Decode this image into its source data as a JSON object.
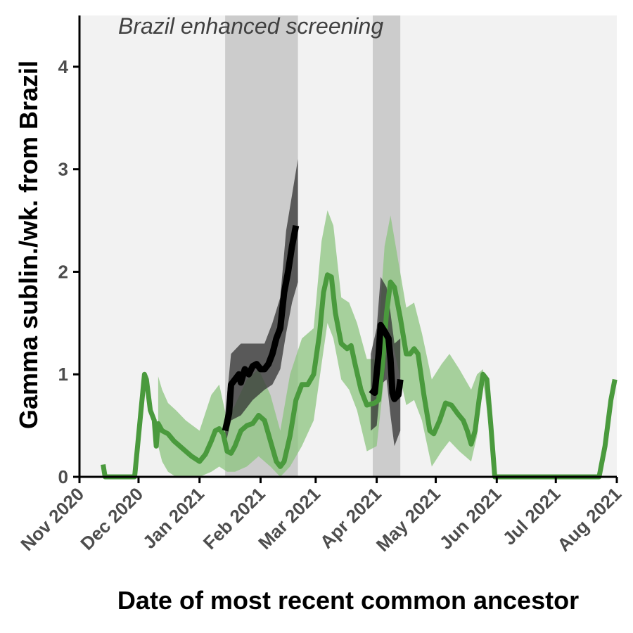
{
  "chart_data": {
    "type": "line",
    "title": "",
    "xlabel": "Date of most recent common ancestor",
    "ylabel": "Gamma sublin./wk. from Brazil",
    "xlim": [
      "2020-11-01",
      "2021-08-01"
    ],
    "ylim": [
      0,
      4.5
    ],
    "x_tick_labels": [
      "Nov 2020",
      "Dec 2020",
      "Jan 2021",
      "Feb 2021",
      "Mar 2021",
      "Apr 2021",
      "May 2021",
      "Jun 2021",
      "Jul 2021",
      "Aug 2021"
    ],
    "x_tick_dates": [
      "2020-11-01",
      "2020-12-01",
      "2021-01-01",
      "2021-02-01",
      "2021-03-01",
      "2021-04-01",
      "2021-05-01",
      "2021-06-01",
      "2021-07-01",
      "2021-08-01"
    ],
    "y_ticks": [
      0,
      1,
      2,
      3,
      4
    ],
    "annotation": "Brazil enhanced screening",
    "shaded_periods": [
      {
        "start": "2021-01-14",
        "end": "2021-02-20"
      },
      {
        "start": "2021-03-30",
        "end": "2021-04-13"
      }
    ],
    "colors": {
      "panel_background": "#f2f2f2",
      "shaded_period": "#cccccc",
      "green_line": "#4a9a3d",
      "green_band": "#8cc47f",
      "black_line": "#000000",
      "black_band": "#333333"
    },
    "series": [
      {
        "color": "#4a9a3d",
        "points": [
          [
            "2020-11-13",
            0.12
          ],
          [
            "2020-11-14",
            0.0
          ],
          [
            "2020-11-29",
            0.0
          ],
          [
            "2020-12-01",
            0.4
          ],
          [
            "2020-12-03",
            0.8
          ],
          [
            "2020-12-04",
            1.0
          ],
          [
            "2020-12-05",
            0.95
          ],
          [
            "2020-12-07",
            0.65
          ],
          [
            "2020-12-09",
            0.55
          ],
          [
            "2020-12-10",
            0.3
          ],
          [
            "2020-12-11",
            0.52
          ],
          [
            "2020-12-13",
            0.45
          ],
          [
            "2020-12-16",
            0.42
          ],
          [
            "2020-12-19",
            0.35
          ],
          [
            "2020-12-22",
            0.3
          ],
          [
            "2020-12-25",
            0.25
          ],
          [
            "2020-12-28",
            0.2
          ],
          [
            "2021-01-01",
            0.15
          ],
          [
            "2021-01-04",
            0.22
          ],
          [
            "2021-01-07",
            0.35
          ],
          [
            "2021-01-09",
            0.45
          ],
          [
            "2021-01-11",
            0.47
          ],
          [
            "2021-01-13",
            0.42
          ],
          [
            "2021-01-15",
            0.25
          ],
          [
            "2021-01-17",
            0.23
          ],
          [
            "2021-01-19",
            0.3
          ],
          [
            "2021-01-22",
            0.45
          ],
          [
            "2021-01-25",
            0.5
          ],
          [
            "2021-01-28",
            0.52
          ],
          [
            "2021-01-31",
            0.6
          ],
          [
            "2021-02-03",
            0.55
          ],
          [
            "2021-02-06",
            0.35
          ],
          [
            "2021-02-09",
            0.15
          ],
          [
            "2021-02-11",
            0.1
          ],
          [
            "2021-02-13",
            0.15
          ],
          [
            "2021-02-16",
            0.4
          ],
          [
            "2021-02-19",
            0.75
          ],
          [
            "2021-02-22",
            0.9
          ],
          [
            "2021-02-25",
            0.9
          ],
          [
            "2021-02-28",
            1.0
          ],
          [
            "2021-03-03",
            1.4
          ],
          [
            "2021-03-05",
            1.8
          ],
          [
            "2021-03-07",
            1.97
          ],
          [
            "2021-03-09",
            1.95
          ],
          [
            "2021-03-11",
            1.6
          ],
          [
            "2021-03-14",
            1.3
          ],
          [
            "2021-03-17",
            1.25
          ],
          [
            "2021-03-19",
            1.28
          ],
          [
            "2021-03-21",
            1.1
          ],
          [
            "2021-03-24",
            0.85
          ],
          [
            "2021-03-27",
            0.7
          ],
          [
            "2021-03-31",
            0.72
          ],
          [
            "2021-04-02",
            0.75
          ],
          [
            "2021-04-04",
            1.1
          ],
          [
            "2021-04-06",
            1.6
          ],
          [
            "2021-04-08",
            1.9
          ],
          [
            "2021-04-10",
            1.85
          ],
          [
            "2021-04-13",
            1.55
          ],
          [
            "2021-04-16",
            1.2
          ],
          [
            "2021-04-18",
            1.2
          ],
          [
            "2021-04-20",
            1.25
          ],
          [
            "2021-04-22",
            1.2
          ],
          [
            "2021-04-25",
            0.8
          ],
          [
            "2021-04-28",
            0.45
          ],
          [
            "2021-04-30",
            0.42
          ],
          [
            "2021-05-03",
            0.55
          ],
          [
            "2021-05-06",
            0.72
          ],
          [
            "2021-05-09",
            0.7
          ],
          [
            "2021-05-12",
            0.62
          ],
          [
            "2021-05-15",
            0.55
          ],
          [
            "2021-05-17",
            0.45
          ],
          [
            "2021-05-19",
            0.32
          ],
          [
            "2021-05-21",
            0.45
          ],
          [
            "2021-05-23",
            0.75
          ],
          [
            "2021-05-25",
            1.0
          ],
          [
            "2021-05-27",
            0.95
          ],
          [
            "2021-05-29",
            0.5
          ],
          [
            "2021-05-31",
            0.0
          ],
          [
            "2021-07-23",
            0.0
          ],
          [
            "2021-07-26",
            0.3
          ],
          [
            "2021-07-29",
            0.75
          ],
          [
            "2021-07-31",
            0.95
          ]
        ]
      },
      {
        "color": "#000000",
        "segments": [
          [
            [
              "2021-01-14",
              0.45
            ],
            [
              "2021-01-16",
              0.62
            ],
            [
              "2021-01-17",
              0.9
            ],
            [
              "2021-01-19",
              0.95
            ],
            [
              "2021-01-21",
              1.0
            ],
            [
              "2021-01-22",
              0.92
            ],
            [
              "2021-01-24",
              1.05
            ],
            [
              "2021-01-26",
              1.0
            ],
            [
              "2021-01-28",
              1.08
            ],
            [
              "2021-01-30",
              1.1
            ],
            [
              "2021-02-01",
              1.05
            ],
            [
              "2021-02-03",
              1.05
            ],
            [
              "2021-02-05",
              1.1
            ],
            [
              "2021-02-07",
              1.2
            ],
            [
              "2021-02-09",
              1.35
            ],
            [
              "2021-02-11",
              1.45
            ],
            [
              "2021-02-13",
              1.8
            ],
            [
              "2021-02-15",
              2.0
            ],
            [
              "2021-02-17",
              2.25
            ],
            [
              "2021-02-19",
              2.45
            ]
          ],
          [
            [
              "2021-03-29",
              0.85
            ],
            [
              "2021-03-31",
              0.82
            ],
            [
              "2021-04-02",
              1.2
            ],
            [
              "2021-04-03",
              1.48
            ],
            [
              "2021-04-05",
              1.42
            ],
            [
              "2021-04-07",
              1.35
            ],
            [
              "2021-04-08",
              1.15
            ],
            [
              "2021-04-09",
              0.82
            ],
            [
              "2021-04-10",
              0.76
            ],
            [
              "2021-04-12",
              0.8
            ],
            [
              "2021-04-13",
              0.95
            ]
          ]
        ]
      }
    ],
    "bands": [
      {
        "color": "#8cc47f",
        "points": [
          [
            "2020-12-11",
            0.3,
            0.98
          ],
          [
            "2020-12-13",
            0.15,
            0.85
          ],
          [
            "2020-12-16",
            0.05,
            0.72
          ],
          [
            "2020-12-20",
            0.0,
            0.65
          ],
          [
            "2020-12-25",
            0.0,
            0.55
          ],
          [
            "2021-01-01",
            0.0,
            0.45
          ],
          [
            "2021-01-07",
            0.05,
            0.8
          ],
          [
            "2021-01-11",
            0.1,
            0.9
          ],
          [
            "2021-01-15",
            0.05,
            0.55
          ],
          [
            "2021-01-19",
            0.05,
            0.7
          ],
          [
            "2021-01-25",
            0.1,
            0.95
          ],
          [
            "2021-01-31",
            0.2,
            1.05
          ],
          [
            "2021-02-06",
            0.1,
            0.8
          ],
          [
            "2021-02-11",
            0.0,
            0.45
          ],
          [
            "2021-02-16",
            0.1,
            1.0
          ],
          [
            "2021-02-22",
            0.3,
            1.35
          ],
          [
            "2021-02-28",
            0.55,
            1.45
          ],
          [
            "2021-03-04",
            1.1,
            2.3
          ],
          [
            "2021-03-07",
            1.5,
            2.6
          ],
          [
            "2021-03-10",
            1.35,
            2.45
          ],
          [
            "2021-03-14",
            0.95,
            1.75
          ],
          [
            "2021-03-18",
            0.85,
            1.7
          ],
          [
            "2021-03-22",
            0.65,
            1.5
          ],
          [
            "2021-03-27",
            0.25,
            1.15
          ],
          [
            "2021-04-01",
            0.3,
            1.15
          ],
          [
            "2021-04-05",
            1.0,
            2.25
          ],
          [
            "2021-04-08",
            1.4,
            2.55
          ],
          [
            "2021-04-12",
            1.05,
            2.1
          ],
          [
            "2021-04-16",
            0.7,
            1.65
          ],
          [
            "2021-04-20",
            0.75,
            1.7
          ],
          [
            "2021-04-24",
            0.55,
            1.4
          ],
          [
            "2021-04-29",
            0.1,
            0.95
          ],
          [
            "2021-05-04",
            0.25,
            1.1
          ],
          [
            "2021-05-08",
            0.35,
            1.2
          ],
          [
            "2021-05-13",
            0.25,
            1.05
          ],
          [
            "2021-05-19",
            0.15,
            0.85
          ],
          [
            "2021-05-22",
            0.4,
            1.0
          ],
          [
            "2021-05-25",
            0.95,
            1.05
          ],
          [
            "2021-05-28",
            0.5,
            0.6
          ]
        ]
      },
      {
        "color": "#333333",
        "points": [
          [
            "2021-01-14",
            0.3,
            0.6
          ],
          [
            "2021-01-17",
            0.55,
            1.2
          ],
          [
            "2021-01-22",
            0.6,
            1.3
          ],
          [
            "2021-01-28",
            0.75,
            1.3
          ],
          [
            "2021-02-03",
            0.85,
            1.3
          ],
          [
            "2021-02-07",
            0.9,
            1.5
          ],
          [
            "2021-02-11",
            1.05,
            1.75
          ],
          [
            "2021-02-14",
            1.4,
            2.4
          ],
          [
            "2021-02-17",
            1.7,
            2.75
          ],
          [
            "2021-02-20",
            1.9,
            3.1
          ]
        ],
        "points_b": [
          [
            "2021-03-29",
            0.45,
            1.2
          ],
          [
            "2021-04-01",
            0.5,
            1.45
          ],
          [
            "2021-04-03",
            0.9,
            1.95
          ],
          [
            "2021-04-06",
            0.95,
            1.85
          ],
          [
            "2021-04-08",
            0.6,
            1.6
          ],
          [
            "2021-04-10",
            0.3,
            1.3
          ],
          [
            "2021-04-13",
            0.45,
            1.35
          ]
        ]
      }
    ]
  }
}
